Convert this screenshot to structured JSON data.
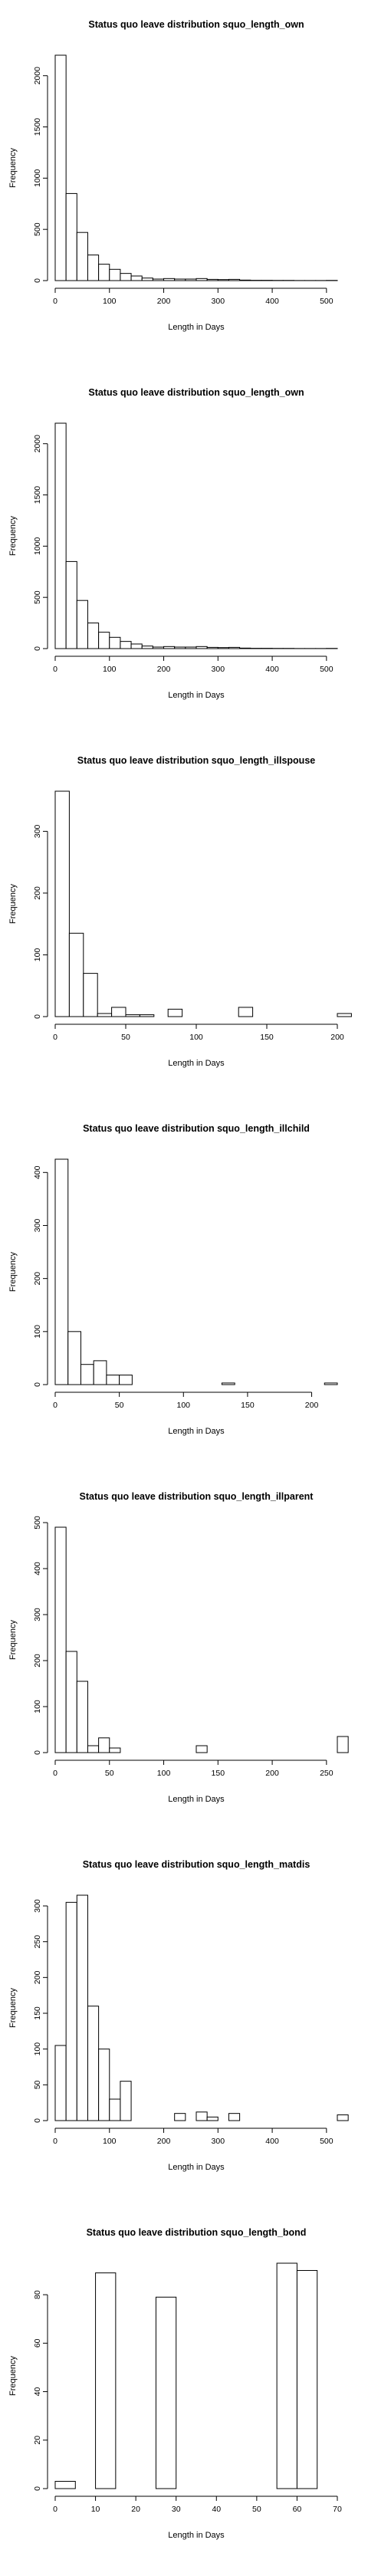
{
  "chart_data": [
    {
      "type": "bar",
      "title": "Status quo leave distribution squo_length_own",
      "xlabel": "Length in Days",
      "ylabel": "Frequency",
      "xlim": [
        0,
        520
      ],
      "ylim": [
        0,
        2200
      ],
      "x_ticks": [
        0,
        100,
        200,
        300,
        400,
        500
      ],
      "y_ticks": [
        0,
        500,
        1000,
        1500,
        2000
      ],
      "bin_width": 20,
      "bin_start": 0,
      "values": [
        2200,
        850,
        470,
        250,
        160,
        110,
        70,
        45,
        25,
        15,
        20,
        15,
        15,
        20,
        12,
        10,
        12,
        5,
        3,
        3,
        2,
        2,
        1,
        1,
        1,
        2
      ],
      "grid": false
    },
    {
      "type": "bar",
      "title": "Status quo leave distribution squo_length_own",
      "xlabel": "Length in Days",
      "ylabel": "Frequency",
      "xlim": [
        0,
        520
      ],
      "ylim": [
        0,
        2200
      ],
      "x_ticks": [
        0,
        100,
        200,
        300,
        400,
        500
      ],
      "y_ticks": [
        0,
        500,
        1000,
        1500,
        2000
      ],
      "bin_width": 20,
      "bin_start": 0,
      "values": [
        2200,
        850,
        470,
        250,
        160,
        110,
        70,
        45,
        25,
        15,
        20,
        15,
        15,
        20,
        12,
        10,
        12,
        5,
        3,
        3,
        2,
        2,
        1,
        1,
        1,
        2
      ],
      "grid": false
    },
    {
      "type": "bar",
      "title": "Status quo leave distribution squo_length_illspouse",
      "xlabel": "Length in Days",
      "ylabel": "Frequency",
      "xlim": [
        0,
        200
      ],
      "ylim": [
        0,
        365
      ],
      "x_ticks": [
        0,
        50,
        100,
        150,
        200
      ],
      "y_ticks": [
        0,
        100,
        200,
        300
      ],
      "bin_width": 10,
      "bin_start": 0,
      "values": [
        365,
        135,
        70,
        5,
        15,
        3,
        3,
        0,
        12,
        0,
        0,
        0,
        0,
        15,
        0,
        0,
        0,
        0,
        0,
        0,
        5
      ],
      "grid": false
    },
    {
      "type": "bar",
      "title": "Status quo leave distribution squo_length_illchild",
      "xlabel": "Length in Days",
      "ylabel": "Frequency",
      "xlim": [
        0,
        220
      ],
      "ylim": [
        0,
        425
      ],
      "x_ticks": [
        0,
        50,
        100,
        150,
        200
      ],
      "y_ticks": [
        0,
        100,
        200,
        300,
        400
      ],
      "bin_width": 10,
      "bin_start": 0,
      "values": [
        425,
        100,
        38,
        45,
        18,
        18,
        0,
        0,
        0,
        0,
        0,
        0,
        0,
        3,
        0,
        0,
        0,
        0,
        0,
        0,
        0,
        3
      ],
      "grid": false
    },
    {
      "type": "bar",
      "title": "Status quo leave distribution squo_length_illparent",
      "xlabel": "Length in Days",
      "ylabel": "Frequency",
      "xlim": [
        0,
        260
      ],
      "ylim": [
        0,
        490
      ],
      "x_ticks": [
        0,
        50,
        100,
        150,
        200,
        250
      ],
      "y_ticks": [
        0,
        100,
        200,
        300,
        400,
        500
      ],
      "bin_width": 10,
      "bin_start": 0,
      "values": [
        490,
        220,
        155,
        15,
        32,
        10,
        0,
        0,
        0,
        0,
        0,
        0,
        0,
        15,
        0,
        0,
        0,
        0,
        0,
        0,
        0,
        0,
        0,
        0,
        0,
        0,
        35
      ],
      "grid": false
    },
    {
      "type": "bar",
      "title": "Status quo leave distribution squo_length_matdis",
      "xlabel": "Length in Days",
      "ylabel": "Frequency",
      "xlim": [
        0,
        520
      ],
      "ylim": [
        0,
        315
      ],
      "x_ticks": [
        0,
        100,
        200,
        300,
        400,
        500
      ],
      "y_ticks": [
        0,
        50,
        100,
        150,
        200,
        250,
        300
      ],
      "bin_width": 20,
      "bin_start": 0,
      "values": [
        105,
        305,
        315,
        160,
        100,
        30,
        55,
        0,
        0,
        0,
        0,
        10,
        0,
        12,
        5,
        0,
        10,
        0,
        0,
        0,
        0,
        0,
        0,
        0,
        0,
        0,
        8
      ],
      "grid": false
    },
    {
      "type": "bar",
      "title": "Status quo leave distribution squo_length_bond",
      "xlabel": "Length in Days",
      "ylabel": "Frequency",
      "xlim": [
        0,
        70
      ],
      "ylim": [
        0,
        93
      ],
      "x_ticks": [
        0,
        10,
        20,
        30,
        40,
        50,
        60,
        70
      ],
      "y_ticks": [
        0,
        20,
        40,
        60,
        80
      ],
      "bin_width": 5,
      "bin_start": 0,
      "values": [
        3,
        0,
        89,
        0,
        0,
        79,
        0,
        0,
        0,
        0,
        0,
        93,
        90
      ],
      "grid": false
    }
  ]
}
